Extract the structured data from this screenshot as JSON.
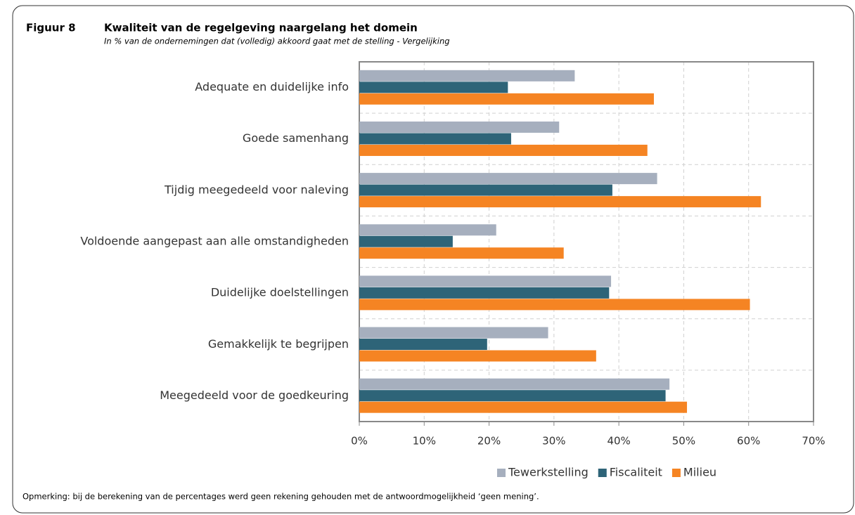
{
  "chart_data": {
    "type": "bar",
    "orientation": "horizontal",
    "figure_label": "Figuur 8",
    "title": "Kwaliteit van de regelgeving naargelang het domein",
    "subtitle": "In % van de ondernemingen dat (volledig) akkoord gaat met de stelling - Vergelijking",
    "categories": [
      "Adequate en duidelijke info",
      "Goede samenhang",
      "Tijdig meegedeeld voor naleving",
      "Voldoende aangepast aan alle omstandigheden",
      "Duidelijke doelstellingen",
      "Gemakkelijk te begrijpen",
      "Meegedeeld voor de goedkeuring"
    ],
    "series": [
      {
        "name": "Tewerkstelling",
        "color": "#a6afbe",
        "values": [
          33.2,
          30.8,
          45.9,
          21.1,
          38.8,
          29.1,
          47.8
        ]
      },
      {
        "name": "Fiscaliteit",
        "color": "#2e6478",
        "values": [
          22.9,
          23.4,
          39.0,
          14.4,
          38.5,
          19.7,
          47.2
        ]
      },
      {
        "name": "Milieu",
        "color": "#f58423",
        "values": [
          45.4,
          44.4,
          61.9,
          31.5,
          60.2,
          36.5,
          50.5
        ]
      }
    ],
    "xlim": [
      0,
      70
    ],
    "xticks": [
      {
        "value": 0,
        "label": "0%"
      },
      {
        "value": 10,
        "label": "10%"
      },
      {
        "value": 20,
        "label": "20%"
      },
      {
        "value": 30,
        "label": "30%"
      },
      {
        "value": 40,
        "label": "40%"
      },
      {
        "value": 50,
        "label": "50%"
      },
      {
        "value": 60,
        "label": "60%"
      },
      {
        "value": 70,
        "label": "70%"
      }
    ],
    "grid": true,
    "legend": "bottom-right",
    "note": "Opmerking: bij de berekening van de percentages werd geen rekening gehouden met de antwoordmogelijkheid ‘geen mening’."
  }
}
